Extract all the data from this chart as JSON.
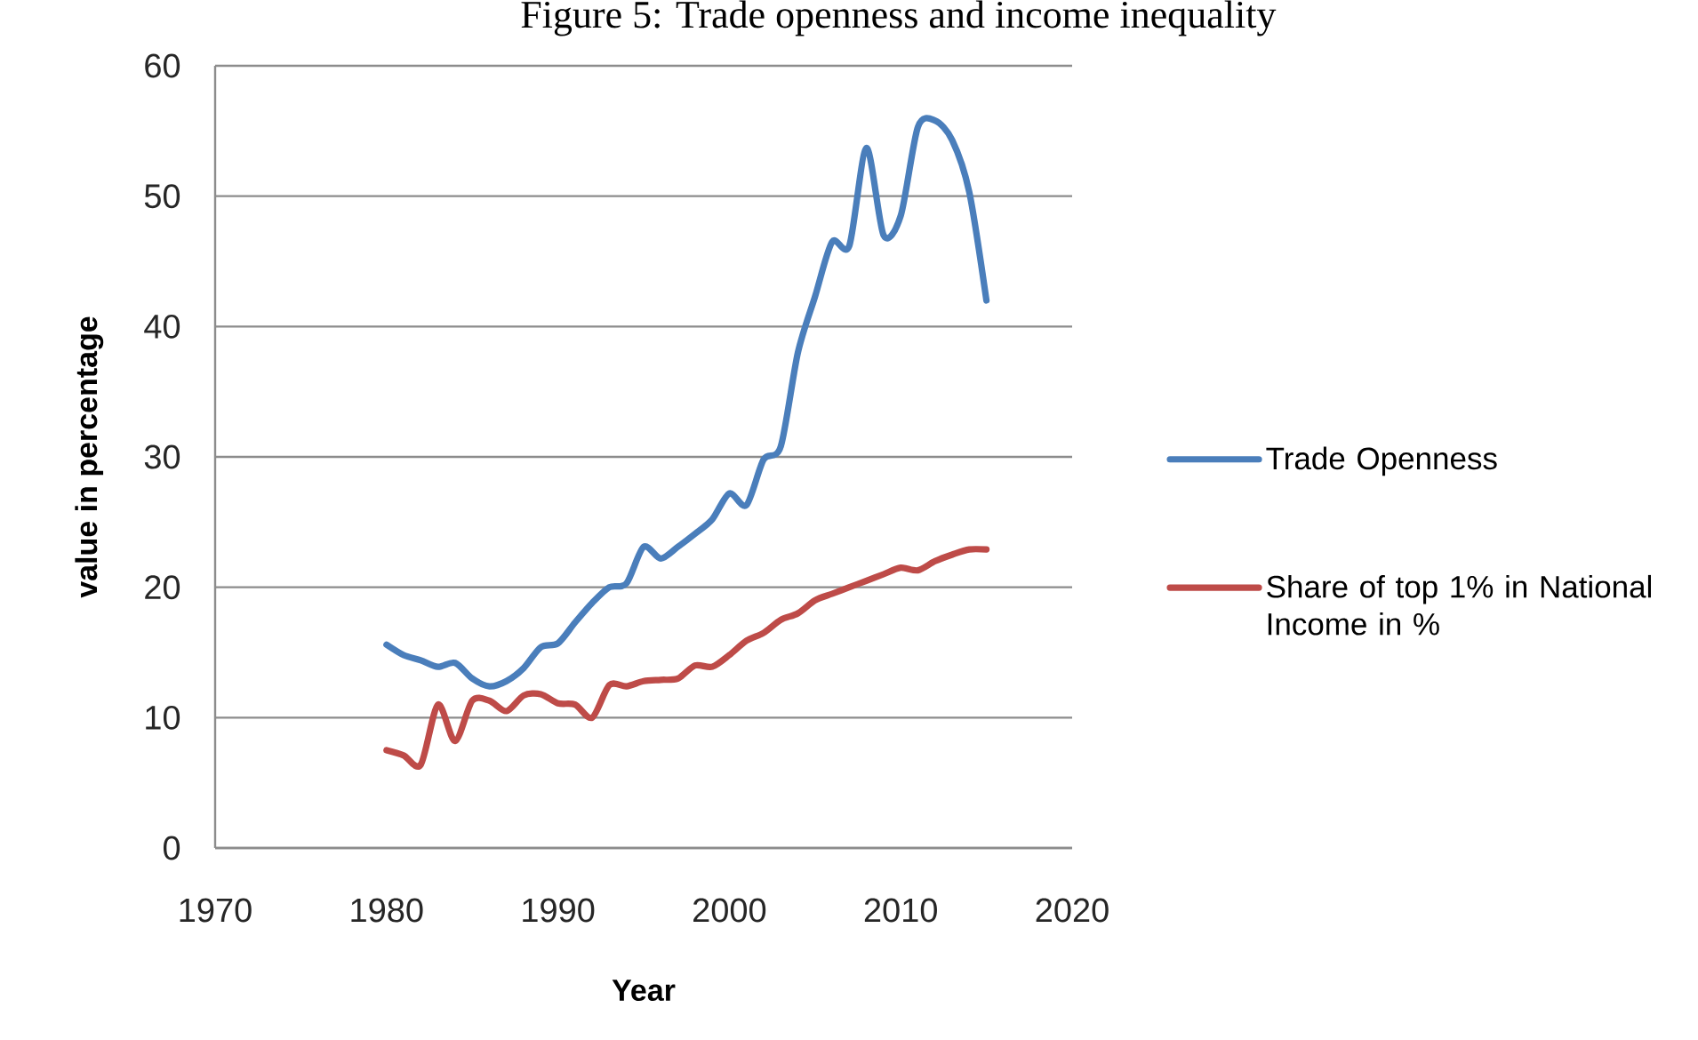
{
  "chart_data": {
    "type": "line",
    "title": "Figure 5: Trade openness and income inequality",
    "xlabel": "Year",
    "ylabel": "value in percentage",
    "x": [
      1980,
      1981,
      1982,
      1983,
      1984,
      1985,
      1986,
      1987,
      1988,
      1989,
      1990,
      1991,
      1992,
      1993,
      1994,
      1995,
      1996,
      1997,
      1998,
      1999,
      2000,
      2001,
      2002,
      2003,
      2004,
      2005,
      2006,
      2007,
      2008,
      2009,
      2010,
      2011,
      2012,
      2013,
      2014,
      2015
    ],
    "series": [
      {
        "name": "Trade Openness",
        "color": "#4a7ebb",
        "values": [
          15.6,
          14.8,
          14.4,
          13.9,
          14.2,
          13.0,
          12.4,
          12.8,
          13.8,
          15.4,
          15.7,
          17.3,
          18.8,
          20.0,
          20.3,
          23.1,
          22.2,
          23.1,
          24.1,
          25.2,
          27.2,
          26.3,
          29.8,
          30.8,
          38.0,
          42.3,
          46.5,
          46.2,
          53.7,
          47.0,
          48.5,
          55.3,
          55.8,
          54.3,
          50.3,
          42.0
        ]
      },
      {
        "name": "Share of top 1% in National Income in %",
        "color": "#be4b48",
        "values": [
          7.5,
          7.1,
          6.4,
          11.0,
          8.2,
          11.3,
          11.3,
          10.5,
          11.7,
          11.8,
          11.1,
          11.0,
          10.0,
          12.5,
          12.4,
          12.8,
          12.9,
          13.0,
          14.0,
          13.9,
          14.8,
          15.9,
          16.5,
          17.5,
          18.0,
          19.0,
          19.5,
          20.0,
          20.5,
          21.0,
          21.5,
          21.3,
          22.0,
          22.5,
          22.9,
          22.9
        ]
      }
    ],
    "xlim": [
      1970,
      2020
    ],
    "ylim": [
      0,
      60
    ],
    "xticks": [
      1970,
      1980,
      1990,
      2000,
      2010,
      2020
    ],
    "yticks": [
      0,
      10,
      20,
      30,
      40,
      50,
      60
    ],
    "grid": "y",
    "legend": "right",
    "marker": "none",
    "line_style": "solid"
  }
}
